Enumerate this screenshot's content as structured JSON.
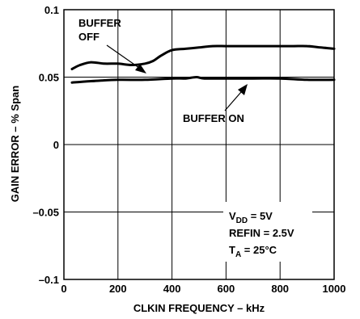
{
  "chart_data": {
    "type": "line",
    "title": "",
    "xlabel": "CLKIN FREQUENCY – kHz",
    "ylabel": "GAIN ERROR – % Span",
    "xlim": [
      0,
      1000
    ],
    "ylim": [
      -0.1,
      0.1
    ],
    "x_ticks": [
      "0",
      "200",
      "400",
      "600",
      "800",
      "1000"
    ],
    "y_ticks": [
      "0.1",
      "0.05",
      "0",
      "–0.05",
      "–0.1"
    ],
    "grid": true,
    "series": [
      {
        "name": "BUFFER OFF",
        "x": [
          30,
          60,
          100,
          150,
          200,
          250,
          300,
          330,
          360,
          400,
          450,
          500,
          550,
          600,
          650,
          700,
          750,
          800,
          850,
          900,
          950,
          1000
        ],
        "y": [
          0.056,
          0.059,
          0.061,
          0.06,
          0.06,
          0.059,
          0.06,
          0.062,
          0.066,
          0.07,
          0.071,
          0.072,
          0.073,
          0.073,
          0.073,
          0.073,
          0.073,
          0.073,
          0.073,
          0.073,
          0.072,
          0.071
        ]
      },
      {
        "name": "BUFFER ON",
        "x": [
          30,
          100,
          200,
          300,
          400,
          450,
          490,
          520,
          600,
          700,
          800,
          900,
          1000
        ],
        "y": [
          0.046,
          0.047,
          0.048,
          0.048,
          0.049,
          0.049,
          0.05,
          0.049,
          0.049,
          0.049,
          0.049,
          0.048,
          0.048
        ]
      }
    ],
    "conditions": [
      {
        "main": "V",
        "sub": "DD",
        "rest": " = 5V"
      },
      {
        "main": "REFIN = 2.5V",
        "sub": "",
        "rest": ""
      },
      {
        "main": "T",
        "sub": "A",
        "rest": " = 25°C"
      }
    ]
  }
}
